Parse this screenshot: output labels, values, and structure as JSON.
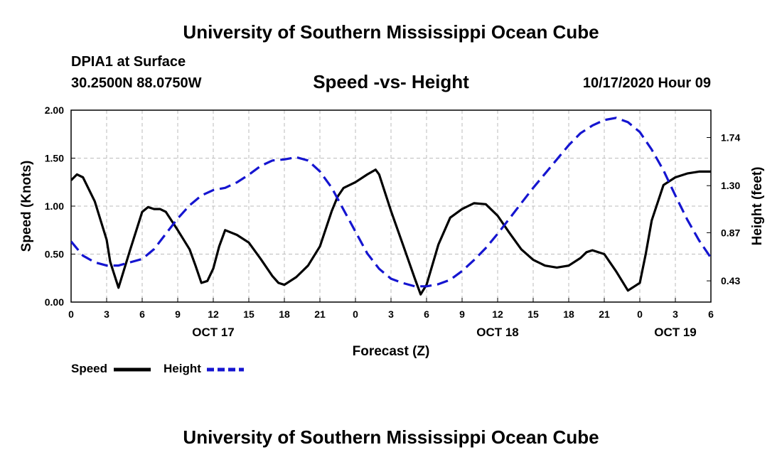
{
  "header": {
    "title": "University of Southern Mississippi Ocean Cube",
    "station": "DPIA1 at Surface",
    "coords": "30.2500N 88.0750W",
    "chart_title": "Speed -vs- Height",
    "timestamp": "10/17/2020 Hour 09"
  },
  "footer": {
    "title": "University of Southern Mississippi Ocean Cube"
  },
  "colors": {
    "speed": "#000000",
    "height": "#1515d0",
    "grid": "#bbbbbb"
  },
  "chart_data": {
    "type": "line",
    "title": "Speed -vs- Height",
    "xlabel": "Forecast (Z)",
    "ylabel": "Speed (Knots)",
    "y2label": "Height (feet)",
    "xlim": [
      0,
      54
    ],
    "ylim": [
      0,
      2.0
    ],
    "y2lim": [
      0.236,
      1.99
    ],
    "x_ticks": [
      0,
      3,
      6,
      9,
      12,
      15,
      18,
      21,
      24,
      27,
      30,
      33,
      36,
      39,
      42,
      45,
      48,
      51,
      54
    ],
    "x_tick_labels": [
      "0",
      "3",
      "6",
      "9",
      "12",
      "15",
      "18",
      "21",
      "0",
      "3",
      "6",
      "9",
      "12",
      "15",
      "18",
      "21",
      "0",
      "3",
      "6"
    ],
    "y_ticks": [
      0,
      0.5,
      1.0,
      1.5,
      2.0
    ],
    "y_tick_labels": [
      "0.00",
      "0.50",
      "1.00",
      "1.50",
      "2.00"
    ],
    "y2_ticks": [
      0.43,
      0.87,
      1.3,
      1.74
    ],
    "y2_tick_labels": [
      "0.43",
      "0.87",
      "1.30",
      "1.74"
    ],
    "day_labels": [
      {
        "x": 12,
        "label": "OCT 17"
      },
      {
        "x": 36,
        "label": "OCT 18"
      },
      {
        "x": 51,
        "label": "OCT 19"
      }
    ],
    "grid": true,
    "legend_placement": "bottom-left",
    "series": [
      {
        "name": "Speed",
        "axis": "left",
        "style": "solid",
        "x": [
          0,
          0.5,
          1,
          2,
          3,
          3.3,
          4,
          5,
          6,
          6.5,
          7,
          7.5,
          8,
          9,
          10,
          10.5,
          11,
          11.5,
          12,
          12.5,
          13,
          14,
          15,
          16,
          17,
          17.5,
          18,
          19,
          20,
          21,
          22,
          22.5,
          23,
          24,
          25,
          25.7,
          26,
          27,
          28,
          29,
          29.5,
          30,
          31,
          32,
          33,
          33.5,
          34,
          35,
          36,
          37,
          38,
          39,
          40,
          41,
          42,
          43,
          43.5,
          44,
          45,
          46,
          47,
          48,
          48.5,
          49,
          50,
          51,
          52,
          53,
          54
        ],
        "values": [
          1.27,
          1.33,
          1.3,
          1.05,
          0.65,
          0.42,
          0.15,
          0.55,
          0.94,
          0.99,
          0.97,
          0.97,
          0.94,
          0.75,
          0.55,
          0.38,
          0.2,
          0.22,
          0.35,
          0.58,
          0.75,
          0.7,
          0.62,
          0.45,
          0.27,
          0.2,
          0.18,
          0.26,
          0.38,
          0.58,
          0.95,
          1.1,
          1.19,
          1.25,
          1.33,
          1.38,
          1.33,
          0.95,
          0.6,
          0.25,
          0.08,
          0.18,
          0.6,
          0.88,
          0.97,
          1.0,
          1.03,
          1.02,
          0.9,
          0.72,
          0.55,
          0.44,
          0.38,
          0.36,
          0.38,
          0.46,
          0.52,
          0.54,
          0.5,
          0.32,
          0.12,
          0.2,
          0.5,
          0.85,
          1.22,
          1.3,
          1.34,
          1.36,
          1.36
        ]
      },
      {
        "name": "Height",
        "axis": "right",
        "style": "dashed",
        "x": [
          0,
          1,
          2,
          3,
          4,
          5,
          6,
          7,
          8,
          9,
          10,
          11,
          12,
          13,
          14,
          15,
          16,
          17,
          18,
          19,
          20,
          21,
          22,
          23,
          24,
          25,
          26,
          27,
          28,
          29,
          30,
          31,
          32,
          33,
          34,
          35,
          36,
          37,
          38,
          39,
          40,
          41,
          42,
          43,
          44,
          45,
          46,
          47,
          48,
          49,
          50,
          51,
          52,
          53,
          54
        ],
        "values": [
          0.79,
          0.66,
          0.6,
          0.57,
          0.57,
          0.6,
          0.63,
          0.72,
          0.86,
          1.0,
          1.12,
          1.21,
          1.26,
          1.28,
          1.33,
          1.4,
          1.48,
          1.53,
          1.54,
          1.56,
          1.53,
          1.43,
          1.28,
          1.08,
          0.88,
          0.68,
          0.54,
          0.45,
          0.41,
          0.38,
          0.38,
          0.4,
          0.44,
          0.52,
          0.62,
          0.73,
          0.86,
          1.0,
          1.14,
          1.28,
          1.41,
          1.54,
          1.67,
          1.78,
          1.85,
          1.9,
          1.92,
          1.88,
          1.79,
          1.63,
          1.44,
          1.21,
          0.99,
          0.8,
          0.64
        ]
      }
    ]
  }
}
